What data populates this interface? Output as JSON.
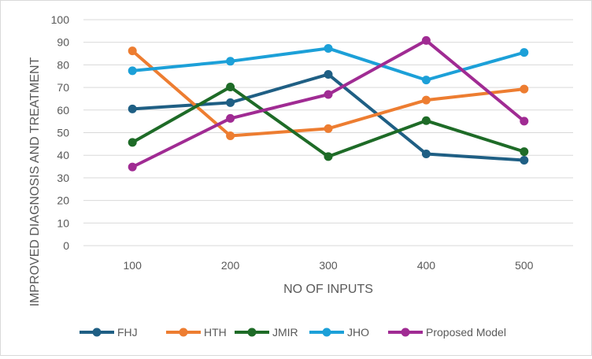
{
  "chart_data": {
    "type": "line",
    "title": "",
    "xlabel": "NO OF INPUTS",
    "ylabel": "IMPROVED DIAGNOSIS AND TREATMENT",
    "categories": [
      "100",
      "200",
      "300",
      "400",
      "500"
    ],
    "ylim": [
      0,
      100
    ],
    "yticks": [
      "0",
      "10",
      "20",
      "30",
      "40",
      "50",
      "60",
      "70",
      "80",
      "90",
      "100"
    ],
    "grid": true,
    "legend_position": "bottom",
    "series": [
      {
        "name": "FHJ",
        "color": "#1f5f84",
        "values": [
          60.5,
          63.3,
          75.8,
          40.6,
          37.8
        ]
      },
      {
        "name": "HTH",
        "color": "#ed7d31",
        "values": [
          86.2,
          48.6,
          51.8,
          64.4,
          69.3
        ]
      },
      {
        "name": "JMIR",
        "color": "#1e6b27",
        "values": [
          45.7,
          70.2,
          39.4,
          55.3,
          41.6
        ]
      },
      {
        "name": "JHO",
        "color": "#1ca0d8",
        "values": [
          77.4,
          81.6,
          87.3,
          73.3,
          85.5
        ]
      },
      {
        "name": "Proposed Model",
        "color": "#a02b93",
        "values": [
          34.8,
          56.3,
          66.9,
          90.8,
          55.1
        ]
      }
    ]
  }
}
